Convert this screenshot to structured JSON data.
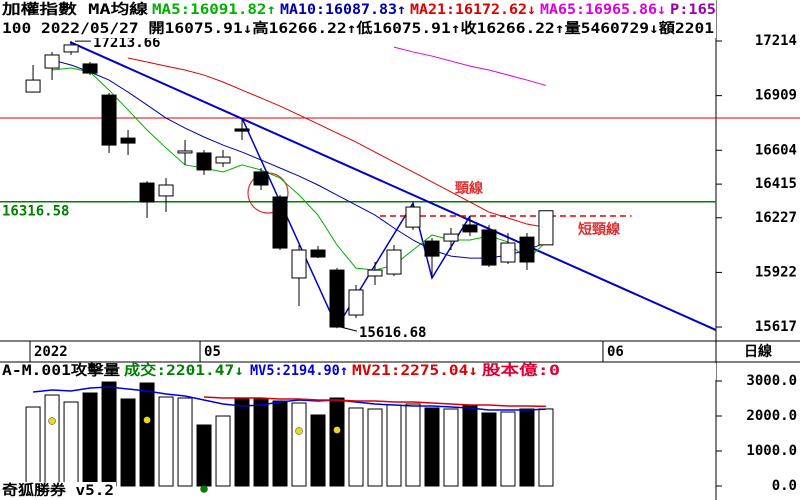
{
  "chart_data": [
    {
      "type": "candlestick",
      "title": "加權指數 MA均線",
      "extra": "P:165",
      "extra_color": "#9900aa",
      "info": "100 2022/05/27 開16075.91↓高16266.22↑低16075.91↑收16266.22↑量5460729↓額2201",
      "period": "日線",
      "xlim": [
        -1.74,
        35.95
      ],
      "ylim": [
        15539,
        17443
      ],
      "xticks": [
        {
          "value": -0.16,
          "label": "2022"
        },
        {
          "value": 8.79,
          "label": "05"
        },
        {
          "value": 30,
          "label": "06"
        }
      ],
      "yticks": [
        17214,
        16909,
        16604,
        16415,
        16227,
        15922,
        15617
      ],
      "candles": [
        {
          "open": 16929,
          "high": 17080,
          "low": 16929,
          "close": 16996
        },
        {
          "open": 17063,
          "high": 17153,
          "low": 16996,
          "close": 17136
        },
        {
          "open": 17153,
          "high": 17213.66,
          "low": 17136,
          "close": 17192
        },
        {
          "open": 17086,
          "high": 17097,
          "low": 17024,
          "close": 17035
        },
        {
          "open": 16912,
          "high": 16924,
          "low": 16589,
          "close": 16633
        },
        {
          "open": 16672,
          "high": 16717,
          "low": 16577,
          "close": 16644
        },
        {
          "open": 16421,
          "high": 16432,
          "low": 16226,
          "close": 16315
        },
        {
          "open": 16349,
          "high": 16449,
          "low": 16259,
          "close": 16410
        },
        {
          "open": 16589,
          "high": 16661,
          "low": 16522,
          "close": 16600
        },
        {
          "open": 16589,
          "high": 16605,
          "low": 16466,
          "close": 16494
        },
        {
          "open": 16533,
          "high": 16605,
          "low": 16510,
          "close": 16566
        },
        {
          "open": 16723,
          "high": 16784,
          "low": 16661,
          "close": 16711
        },
        {
          "open": 16483,
          "high": 16505,
          "low": 16382,
          "close": 16410
        },
        {
          "open": 16343,
          "high": 16354,
          "low": 16047,
          "close": 16058
        },
        {
          "open": 15891,
          "high": 16075,
          "low": 15734,
          "close": 16047
        },
        {
          "open": 16047,
          "high": 16069,
          "low": 16002,
          "close": 16008
        },
        {
          "open": 15935,
          "high": 15946,
          "low": 15616.68,
          "close": 15617
        },
        {
          "open": 15684,
          "high": 15852,
          "low": 15667,
          "close": 15824
        },
        {
          "open": 15902,
          "high": 15980,
          "low": 15852,
          "close": 15935
        },
        {
          "open": 15913,
          "high": 16075,
          "low": 15902,
          "close": 16047
        },
        {
          "open": 16175,
          "high": 16309,
          "low": 16159,
          "close": 16287
        },
        {
          "open": 16097,
          "high": 16114,
          "low": 15891,
          "close": 16013
        },
        {
          "open": 16097,
          "high": 16170,
          "low": 16047,
          "close": 16136
        },
        {
          "open": 16187,
          "high": 16237,
          "low": 16125,
          "close": 16148
        },
        {
          "open": 16159,
          "high": 16187,
          "low": 15952,
          "close": 15963
        },
        {
          "open": 15980,
          "high": 16142,
          "low": 15969,
          "close": 16086
        },
        {
          "open": 16119,
          "high": 16142,
          "low": 15935,
          "close": 15980
        },
        {
          "open": 16075.91,
          "high": 16266.22,
          "low": 16075.91,
          "close": 16266.22
        }
      ],
      "series": [
        {
          "name": "MA5:16091.82↑",
          "color": "#00b000",
          "values": [
            null,
            17052,
            17063,
            17041,
            16940,
            16829,
            16717,
            16617,
            16522,
            16505,
            16483,
            16522,
            16494,
            16449,
            16354,
            16242,
            16075,
            15946,
            15935,
            15963,
            16047,
            16131,
            16103,
            16103,
            16125,
            16092,
            15991,
            16091.82
          ]
        },
        {
          "name": "MA10:16087.83↑",
          "color": "#0000aa",
          "values": [
            null,
            17108,
            17080,
            17041,
            16996,
            16929,
            16857,
            16784,
            16728,
            16678,
            16633,
            16594,
            16550,
            16505,
            16460,
            16410,
            16354,
            16298,
            16242,
            16170,
            16103,
            16047,
            16013,
            16002,
            16002,
            16019,
            16047,
            16087.83
          ]
        },
        {
          "name": "MA21:16172.62↓",
          "color": "#dd0000",
          "values": [
            null,
            null,
            null,
            null,
            null,
            17119,
            17097,
            17074,
            17052,
            17024,
            16985,
            16940,
            16896,
            16851,
            16801,
            16751,
            16700,
            16650,
            16594,
            16538,
            16483,
            16427,
            16371,
            16315,
            16259,
            16226,
            16192,
            16172.62
          ]
        },
        {
          "name": "MA65:16965.86↓",
          "color": "#dd00dd",
          "values": [
            null,
            null,
            null,
            null,
            null,
            null,
            null,
            null,
            null,
            null,
            null,
            null,
            null,
            null,
            null,
            null,
            null,
            null,
            null,
            17180,
            17153,
            17130,
            17102,
            17074,
            17052,
            17024,
            16996,
            16965.86
          ]
        }
      ],
      "support": {
        "value": 16316.58,
        "color": "#008000"
      },
      "resistance": {
        "value": 16784,
        "color": "#dd0000"
      },
      "neckline": {
        "label": "頸線",
        "color": "#0000cc",
        "x": [
          1.95,
          35.95
        ],
        "values": [
          17208,
          15600
        ]
      },
      "zigzag": {
        "color": "#0000cc",
        "x": [
          11,
          16,
          20,
          21,
          23
        ],
        "values": [
          16784,
          15616.68,
          16309,
          15891,
          16237
        ]
      },
      "short_neckline": {
        "label": "短頸線",
        "color": "#dd0000",
        "x": [
          18.26,
          31.5
        ],
        "value": 16237
      }
    },
    {
      "type": "volume",
      "title": "A-M.001攻擊量",
      "title_color": "#000000",
      "total": "成交:2201.47↓",
      "total_color": "#008000",
      "extra": "股本億:0",
      "extra_color": "#dd0033",
      "ylim": [
        -400,
        3143
      ],
      "yticks": [
        {
          "value": 3000,
          "label": "3000.0"
        },
        {
          "value": 2000,
          "label": "2000.0"
        },
        {
          "value": 1000,
          "label": "1000.0"
        },
        {
          "value": 0,
          "label": "0.0"
        }
      ],
      "values": [
        2257,
        2600,
        2400,
        2657,
        2971,
        2486,
        2943,
        2543,
        2514,
        1743,
        2000,
        2514,
        2486,
        2429,
        2371,
        2029,
        2514,
        2229,
        2200,
        2314,
        2343,
        2229,
        2200,
        2314,
        2086,
        2114,
        2200,
        2201.47
      ],
      "series": [
        {
          "name": "MV5:2194.90↑",
          "color": "#0000dd",
          "values": [
            2686,
            2743,
            2714,
            2800,
            2829,
            2771,
            2714,
            2629,
            2571,
            2457,
            2343,
            2286,
            2314,
            2400,
            2457,
            2429,
            2457,
            2400,
            2343,
            2314,
            2286,
            2286,
            2257,
            2229,
            2171,
            2171,
            2171,
            2194.9
          ]
        },
        {
          "name": "MV21:2275.04↓",
          "color": "#dd0000",
          "values": [
            null,
            null,
            null,
            null,
            null,
            null,
            null,
            null,
            null,
            2543,
            2514,
            2514,
            2514,
            2486,
            2486,
            2457,
            2457,
            2429,
            2429,
            2400,
            2400,
            2371,
            2343,
            2314,
            2314,
            2286,
            2286,
            2275.04
          ]
        }
      ],
      "markers": {
        "x": [
          1,
          6,
          14,
          16,
          9
        ],
        "values": [
          1857,
          1886,
          1571,
          1600,
          -86
        ],
        "colors": [
          "#e8d820",
          "#e8d820",
          "#e8d820",
          "#e8d820",
          "#008000"
        ]
      }
    }
  ],
  "footer": "奇狐勝券 v5.2"
}
